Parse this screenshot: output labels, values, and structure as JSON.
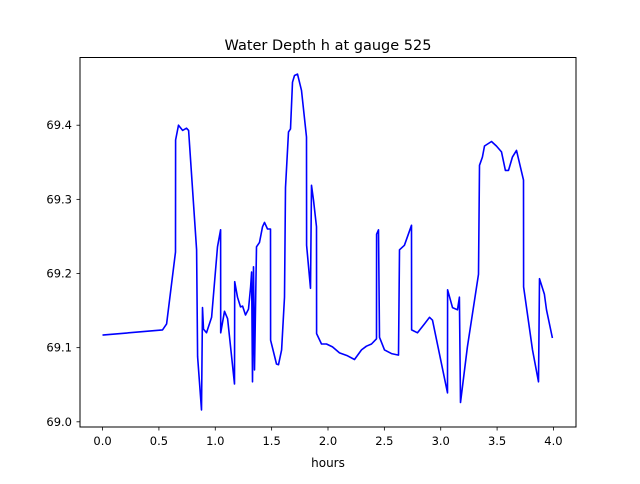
{
  "chart_data": {
    "type": "line",
    "title": "Water Depth h at gauge 525",
    "xlabel": "hours",
    "ylabel": "",
    "xlim": [
      -0.2,
      4.2
    ],
    "ylim": [
      68.993,
      69.492
    ],
    "xticks": [
      0.0,
      0.5,
      1.0,
      1.5,
      2.0,
      2.5,
      3.0,
      3.5,
      4.0
    ],
    "xtick_labels": [
      "0.0",
      "0.5",
      "1.0",
      "1.5",
      "2.0",
      "2.5",
      "3.0",
      "3.5",
      "4.0"
    ],
    "yticks": [
      69.0,
      69.1,
      69.2,
      69.3,
      69.4
    ],
    "ytick_labels": [
      "69.0",
      "69.1",
      "69.2",
      "69.3",
      "69.4"
    ],
    "grid": false,
    "series": [
      {
        "name": "h",
        "color": "#0000ff",
        "x": [
          0.0,
          0.532,
          0.568,
          0.647,
          0.648,
          0.674,
          0.71,
          0.745,
          0.763,
          0.834,
          0.843,
          0.878,
          0.887,
          0.896,
          0.922,
          0.967,
          1.02,
          1.047,
          1.048,
          1.082,
          1.109,
          1.171,
          1.172,
          1.197,
          1.224,
          1.242,
          1.268,
          1.295,
          1.313,
          1.322,
          1.33,
          1.339,
          1.348,
          1.366,
          1.392,
          1.419,
          1.437,
          1.463,
          1.49,
          1.491,
          1.543,
          1.561,
          1.588,
          1.614,
          1.623,
          1.65,
          1.667,
          1.685,
          1.703,
          1.729,
          1.765,
          1.809,
          1.81,
          1.845,
          1.854,
          1.871,
          1.898,
          1.899,
          1.942,
          1.987,
          2.04,
          2.102,
          2.173,
          2.235,
          2.297,
          2.341,
          2.386,
          2.43,
          2.431,
          2.448,
          2.457,
          2.501,
          2.563,
          2.625,
          2.634,
          2.678,
          2.741,
          2.742,
          2.794,
          2.856,
          2.9,
          2.927,
          3.06,
          3.061,
          3.104,
          3.149,
          3.166,
          3.175,
          3.237,
          3.335,
          3.344,
          3.37,
          3.388,
          3.45,
          3.494,
          3.539,
          3.574,
          3.601,
          3.636,
          3.672,
          3.734,
          3.735,
          3.814,
          3.867,
          3.876,
          3.92,
          3.938,
          3.991
        ],
        "y": [
          69.117,
          69.124,
          69.132,
          69.229,
          69.38,
          69.4,
          69.393,
          69.396,
          69.393,
          69.232,
          69.088,
          69.016,
          69.154,
          69.125,
          69.12,
          69.141,
          69.236,
          69.259,
          69.12,
          69.149,
          69.139,
          69.051,
          69.189,
          69.168,
          69.155,
          69.156,
          69.144,
          69.152,
          69.182,
          69.202,
          69.054,
          69.209,
          69.07,
          69.236,
          69.242,
          69.263,
          69.269,
          69.26,
          69.26,
          69.11,
          69.078,
          69.077,
          69.097,
          69.168,
          69.316,
          69.391,
          69.395,
          69.458,
          69.467,
          69.469,
          69.447,
          69.384,
          69.238,
          69.18,
          69.319,
          69.299,
          69.263,
          69.119,
          69.105,
          69.105,
          69.101,
          69.093,
          69.089,
          69.084,
          69.097,
          69.102,
          69.105,
          69.112,
          69.253,
          69.259,
          69.114,
          69.097,
          69.092,
          69.09,
          69.232,
          69.238,
          69.265,
          69.124,
          69.12,
          69.132,
          69.141,
          69.137,
          69.039,
          69.178,
          69.154,
          69.151,
          69.168,
          69.026,
          69.101,
          69.199,
          69.346,
          69.357,
          69.372,
          69.378,
          69.372,
          69.364,
          69.339,
          69.339,
          69.357,
          69.366,
          69.326,
          69.182,
          69.097,
          69.054,
          69.193,
          69.172,
          69.151,
          69.113
        ]
      }
    ]
  }
}
